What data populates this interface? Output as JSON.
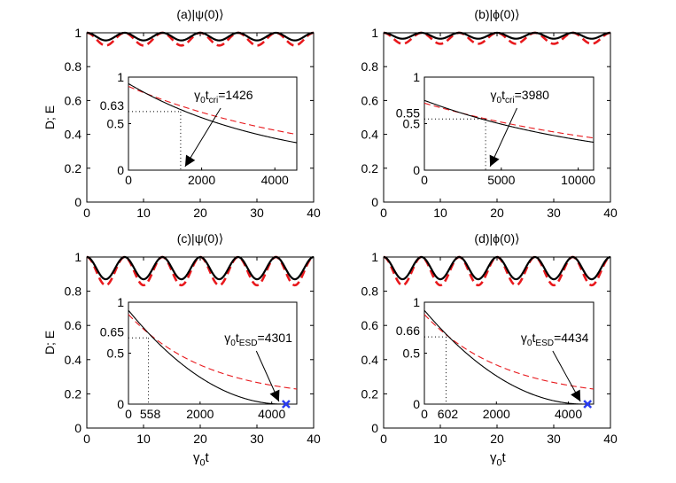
{
  "figure": {
    "y_label": "D; E",
    "x_label_base": "γ",
    "x_label_sub": "0",
    "x_label_tail": "t"
  },
  "chart_data": [
    {
      "type": "line",
      "title": "(a)|ψ(0)⟩",
      "ylabel": "D; E",
      "xlabel": "",
      "xlim": [
        0,
        40
      ],
      "ylim": [
        0,
        1
      ],
      "x_ticks": [
        0,
        10,
        20,
        30,
        40
      ],
      "y_ticks": [
        0,
        0.2,
        0.4,
        0.6,
        0.8,
        1
      ],
      "oscillation": {
        "period": 6.67,
        "black_min": 0.955,
        "red_min": 0.925
      },
      "inset": {
        "xlim": [
          0,
          4600
        ],
        "ylim": [
          0,
          1
        ],
        "x_ticks": [
          0,
          2000,
          4000
        ],
        "y_ticks": [
          0,
          0.5,
          1
        ],
        "black_curve": {
          "start": 0.93,
          "decay_scale": 4000
        },
        "red_curve": {
          "start": 0.9,
          "decay_scale": 5400
        },
        "critical": {
          "x": 1426,
          "y": 0.63,
          "label_base": "γ",
          "label_sub1": "0",
          "label_mid": "t",
          "label_sub2": "cri",
          "label_value": "=1426",
          "y_marker_label": "0.63"
        }
      }
    },
    {
      "type": "line",
      "title": "(b)|ϕ(0)⟩",
      "ylabel": "",
      "xlabel": "",
      "xlim": [
        0,
        40
      ],
      "ylim": [
        0,
        1
      ],
      "x_ticks": [
        0,
        10,
        20,
        30,
        40
      ],
      "y_ticks": [
        0,
        0.2,
        0.4,
        0.6,
        0.8,
        1
      ],
      "oscillation": {
        "period": 6.67,
        "black_min": 0.965,
        "red_min": 0.935
      },
      "inset": {
        "xlim": [
          0,
          11000
        ],
        "ylim": [
          0,
          1
        ],
        "x_ticks": [
          0,
          5000,
          10000
        ],
        "y_ticks": [
          0,
          0.5,
          1
        ],
        "black_curve": {
          "start": 0.75,
          "decay_scale": 12000
        },
        "red_curve": {
          "start": 0.72,
          "decay_scale": 15000
        },
        "critical": {
          "x": 3980,
          "y": 0.55,
          "label_base": "γ",
          "label_sub1": "0",
          "label_mid": "t",
          "label_sub2": "cri",
          "label_value": "=3980",
          "y_marker_label": "0.55"
        }
      }
    },
    {
      "type": "line",
      "title": "(c)|ψ(0)⟩",
      "ylabel": "D; E",
      "xlabel": "γ0t",
      "xlim": [
        0,
        40
      ],
      "ylim": [
        0,
        1
      ],
      "x_ticks": [
        0,
        10,
        20,
        30,
        40
      ],
      "y_ticks": [
        0,
        0.2,
        0.4,
        0.6,
        0.8,
        1
      ],
      "oscillation": {
        "period": 6.67,
        "black_min": 0.87,
        "red_min": 0.835
      },
      "inset": {
        "xlim": [
          0,
          4700
        ],
        "ylim": [
          0,
          1
        ],
        "x_ticks": [
          0,
          2000,
          4000
        ],
        "y_ticks": [
          0,
          0.5,
          1
        ],
        "black_curve": {
          "start": 0.92,
          "esd": 4301
        },
        "red_curve": {
          "start": 0.88,
          "decay_scale": 2200,
          "floor": 0.05
        },
        "critical": {
          "x": 558,
          "y": 0.65,
          "x_marker_label": "558",
          "y_marker_label": "0.65"
        },
        "esd": {
          "x": 4301,
          "label_base": "γ",
          "label_sub1": "0",
          "label_mid": "t",
          "label_sub2": "ESD",
          "label_value": "=4301"
        }
      }
    },
    {
      "type": "line",
      "title": "(d)|ϕ(0)⟩",
      "ylabel": "",
      "xlabel": "γ0t",
      "xlim": [
        0,
        40
      ],
      "ylim": [
        0,
        1
      ],
      "x_ticks": [
        0,
        10,
        20,
        30,
        40
      ],
      "y_ticks": [
        0,
        0.2,
        0.4,
        0.6,
        0.8,
        1
      ],
      "oscillation": {
        "period": 6.67,
        "black_min": 0.87,
        "red_min": 0.835
      },
      "inset": {
        "xlim": [
          0,
          4700
        ],
        "ylim": [
          0,
          1
        ],
        "x_ticks": [
          0,
          2000,
          4000
        ],
        "y_ticks": [
          0,
          0.5,
          1
        ],
        "black_curve": {
          "start": 0.92,
          "esd": 4434
        },
        "red_curve": {
          "start": 0.88,
          "decay_scale": 2200,
          "floor": 0.05
        },
        "critical": {
          "x": 602,
          "y": 0.66,
          "x_marker_label": "602",
          "y_marker_label": "0.66"
        },
        "esd": {
          "x": 4434,
          "label_base": "γ",
          "label_sub1": "0",
          "label_mid": "t",
          "label_sub2": "ESD",
          "label_value": "=4434"
        }
      }
    }
  ],
  "colors": {
    "black_curve": "#000000",
    "red_curve": "#e8191d",
    "esd_marker": "#2a3cf0"
  }
}
